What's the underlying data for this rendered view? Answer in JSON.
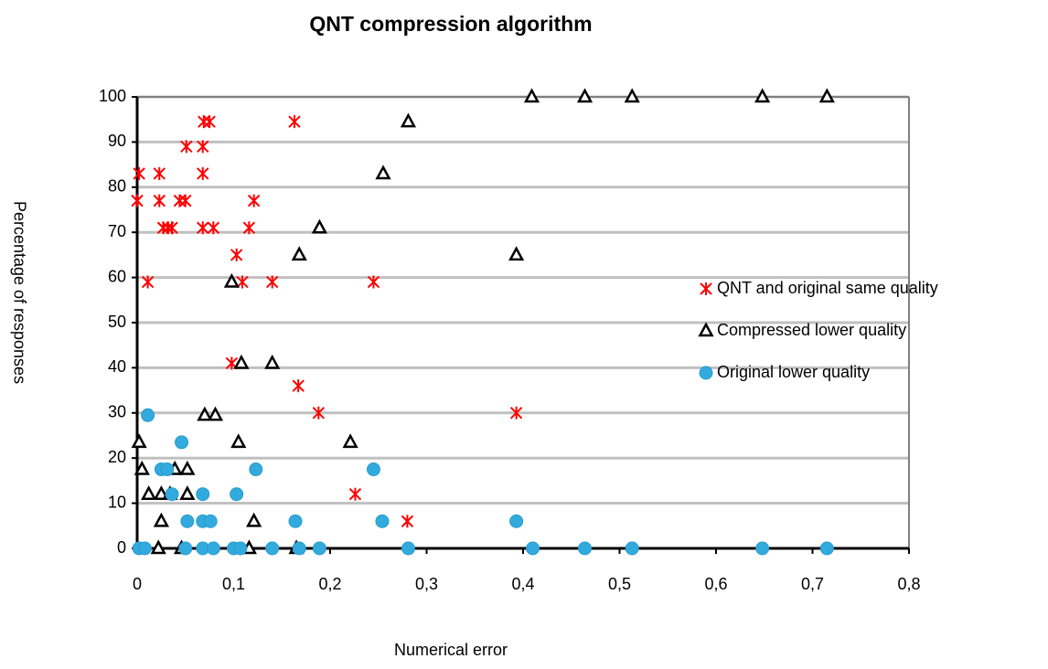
{
  "chart_data": {
    "type": "scatter",
    "title": "QNT compression algorithm",
    "x_label": "Numerical error",
    "y_label": "Percentage of responses",
    "xlim": [
      0,
      0.8
    ],
    "ylim": [
      0,
      100
    ],
    "xticks": [
      0,
      {
        "value": 0.1,
        "label": "0,1"
      },
      {
        "value": 0.2,
        "label": "0,2"
      },
      {
        "value": 0.3,
        "label": "0,3"
      },
      {
        "value": 0.4,
        "label": "0,4"
      },
      {
        "value": 0.5,
        "label": "0,5"
      },
      {
        "value": 0.6,
        "label": "0,6"
      },
      {
        "value": 0.7,
        "label": "0,7"
      },
      {
        "value": 0.8,
        "label": "0,8"
      }
    ],
    "yticks": [
      0,
      10,
      20,
      30,
      40,
      50,
      60,
      70,
      80,
      90,
      100
    ],
    "grid": true,
    "legend": "right",
    "series": [
      {
        "name": "QNT and original same quality",
        "color": "#ff0000",
        "marker": "asterisk",
        "x": [
          0.002,
          0,
          0.011,
          0.023,
          0.023,
          0.027,
          0.032,
          0.036,
          0.044,
          0.05,
          0.051,
          0.068,
          0.068,
          0.068,
          0.069,
          0.075,
          0.079,
          0.103,
          0.109,
          0.116,
          0.121,
          0.14,
          0.163,
          0.245,
          0.098,
          0.167,
          0.188,
          0.226,
          0.28,
          0.393
        ],
        "values": [
          83,
          77,
          59,
          83,
          77,
          71,
          71,
          71,
          77,
          77,
          89,
          89,
          83,
          71,
          94.5,
          94.5,
          71,
          65,
          59,
          71,
          77,
          59,
          94.5,
          59,
          41,
          36,
          30,
          12,
          6,
          30
        ]
      },
      {
        "name": "Compressed lower quality",
        "color": "#000000",
        "marker": "triangle",
        "x": [
          0.409,
          0.464,
          0.513,
          0.648,
          0.715,
          0.281,
          0.255,
          0.189,
          0.168,
          0.393,
          0.098,
          0.108,
          0.14,
          0.07,
          0.081,
          0.105,
          0.002,
          0.221,
          0.005,
          0.039,
          0.052,
          0.012,
          0.025,
          0.034,
          0.052,
          0.025,
          0.121,
          0.022,
          0.046,
          0.116,
          0.165
        ],
        "values": [
          100,
          100,
          100,
          100,
          100,
          94.5,
          83,
          71,
          65,
          65,
          59,
          41,
          41,
          29.5,
          29.5,
          23.5,
          23.5,
          23.5,
          17.5,
          17.5,
          17.5,
          12,
          12,
          12,
          12,
          6,
          6,
          0,
          0,
          0,
          0
        ]
      },
      {
        "name": "Original lower quality",
        "color": "#33aadd",
        "marker": "circle",
        "x": [
          0.011,
          0.046,
          0.025,
          0.031,
          0.123,
          0.245,
          0.036,
          0.068,
          0.103,
          0.052,
          0.068,
          0.076,
          0.164,
          0.254,
          0.393,
          0.002,
          0.008,
          0.05,
          0.068,
          0.079,
          0.1,
          0.107,
          0.14,
          0.168,
          0.189,
          0.281,
          0.41,
          0.464,
          0.513,
          0.648,
          0.715
        ],
        "values": [
          29.5,
          23.5,
          17.5,
          17.5,
          17.5,
          17.5,
          12,
          12,
          12,
          6,
          6,
          6,
          6,
          6,
          6,
          0,
          0,
          0,
          0,
          0,
          0,
          0,
          0,
          0,
          0,
          0,
          0,
          0,
          0,
          0,
          0
        ]
      }
    ]
  }
}
